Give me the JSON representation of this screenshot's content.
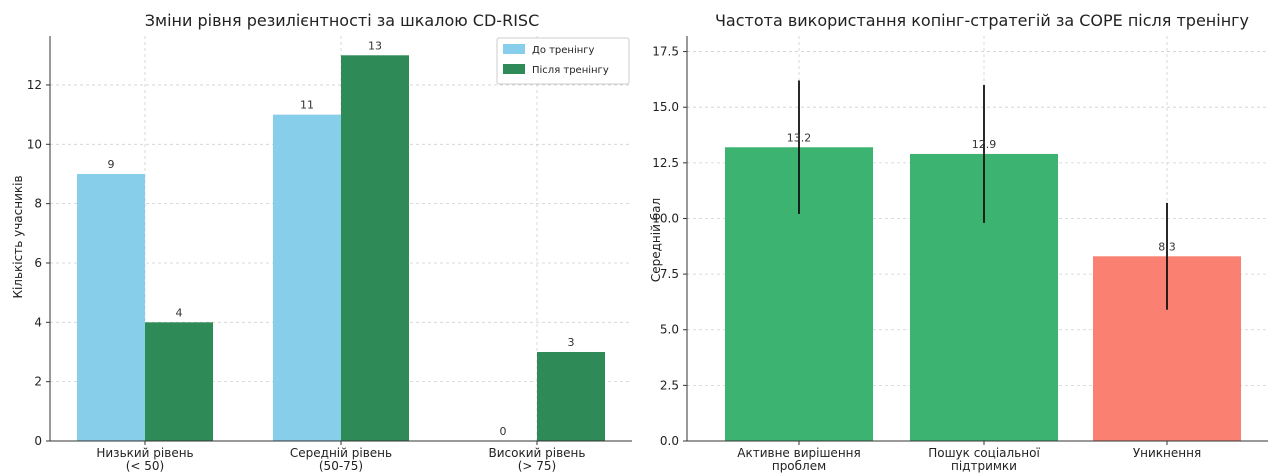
{
  "chart_data": [
    {
      "type": "bar",
      "title": "Зміни рівня резилієнтності за шкалою CD-RISC",
      "xlabel": "",
      "ylabel": "Кількість учасників",
      "ylim": [
        0,
        13.65
      ],
      "yticks": [
        0,
        2,
        4,
        6,
        8,
        10,
        12
      ],
      "grid": true,
      "legend_position": "top-right",
      "categories": [
        [
          "Низький рівень",
          "(< 50)"
        ],
        [
          "Середній рівень",
          "(50-75)"
        ],
        [
          "Високий рівень",
          "(> 75)"
        ]
      ],
      "series": [
        {
          "name": "До тренінгу",
          "color": "#87ceeb",
          "values": [
            9,
            11,
            0
          ],
          "labels": [
            "9",
            "11",
            "0"
          ]
        },
        {
          "name": "Після тренінгу",
          "color": "#2e8b57",
          "values": [
            4,
            13,
            3
          ],
          "labels": [
            "4",
            "13",
            "3"
          ]
        }
      ]
    },
    {
      "type": "bar",
      "title": "Частота використання копінг-стратегій за COPE після тренінгу",
      "xlabel": "",
      "ylabel": "Середній бал",
      "ylim": [
        0,
        18.2
      ],
      "yticks": [
        "0.0",
        "2.5",
        "5.0",
        "7.5",
        "10.0",
        "12.5",
        "15.0",
        "17.5"
      ],
      "grid": true,
      "categories": [
        [
          "Активне вирішення",
          "проблем"
        ],
        [
          "Пошук соціальної",
          "підтримки"
        ],
        [
          "Уникнення"
        ]
      ],
      "values": [
        13.2,
        12.9,
        8.3
      ],
      "labels": [
        "13.2",
        "12.9",
        "8.3"
      ],
      "errors": [
        3.0,
        3.1,
        2.4
      ],
      "colors": [
        "#3cb371",
        "#3cb371",
        "#fa8072"
      ]
    }
  ]
}
